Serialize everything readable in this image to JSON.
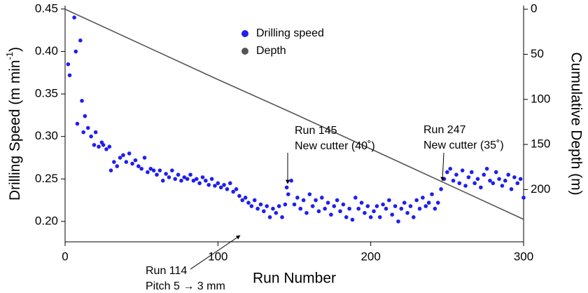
{
  "chart_data": {
    "type": "scatter",
    "xlabel": "Run Number",
    "ylabel": [
      "Drilling Speed (m min",
      "-1",
      ")"
    ],
    "y2label": "Cumulative Depth (m)",
    "xlim": [
      0,
      300
    ],
    "xticks": [
      0,
      100,
      200,
      300
    ],
    "ylim": [
      0.176,
      0.454
    ],
    "yticks": [
      {
        "value": 0.2,
        "label": "0.20"
      },
      0.25,
      {
        "value": 0.3,
        "label": "0.30"
      },
      0.35,
      {
        "value": 0.4,
        "label": "0.40"
      },
      0.45
    ],
    "y2lim": [
      -4,
      258
    ],
    "y2_inverted": true,
    "y2ticks": [
      0,
      50,
      100,
      150,
      200
    ],
    "legend": "top-center",
    "series": [
      {
        "name": "Drilling speed",
        "color": "#1f1fef",
        "kind": "points",
        "x": [
          2,
          3,
          6,
          7,
          8,
          10,
          11,
          12,
          13,
          15,
          17,
          19,
          20,
          22,
          24,
          25,
          27,
          29,
          30,
          32,
          34,
          36,
          38,
          40,
          42,
          44,
          46,
          48,
          50,
          52,
          54,
          56,
          58,
          60,
          62,
          64,
          66,
          68,
          70,
          72,
          74,
          76,
          78,
          80,
          82,
          84,
          86,
          88,
          90,
          92,
          94,
          96,
          98,
          100,
          102,
          104,
          106,
          108,
          110,
          112,
          114,
          116,
          118,
          120,
          122,
          124,
          126,
          128,
          130,
          132,
          134,
          136,
          138,
          140,
          142,
          144,
          145,
          146,
          148,
          150,
          152,
          154,
          156,
          158,
          160,
          162,
          164,
          166,
          168,
          170,
          172,
          174,
          176,
          178,
          180,
          182,
          184,
          186,
          188,
          190,
          192,
          194,
          196,
          198,
          200,
          202,
          204,
          206,
          208,
          210,
          212,
          214,
          216,
          218,
          220,
          222,
          224,
          226,
          228,
          230,
          232,
          234,
          236,
          238,
          240,
          242,
          244,
          246,
          248,
          250,
          252,
          254,
          256,
          258,
          260,
          262,
          264,
          266,
          268,
          270,
          272,
          274,
          276,
          278,
          280,
          282,
          284,
          286,
          288,
          290,
          292,
          294,
          296,
          298,
          300
        ],
        "values": [
          0.385,
          0.372,
          0.44,
          0.4,
          0.315,
          0.413,
          0.342,
          0.305,
          0.324,
          0.31,
          0.3,
          0.29,
          0.305,
          0.288,
          0.293,
          0.29,
          0.285,
          0.288,
          0.26,
          0.27,
          0.265,
          0.275,
          0.278,
          0.27,
          0.28,
          0.268,
          0.272,
          0.265,
          0.262,
          0.275,
          0.258,
          0.262,
          0.26,
          0.255,
          0.26,
          0.248,
          0.256,
          0.252,
          0.26,
          0.25,
          0.255,
          0.248,
          0.252,
          0.25,
          0.255,
          0.248,
          0.25,
          0.245,
          0.252,
          0.248,
          0.243,
          0.25,
          0.242,
          0.245,
          0.24,
          0.243,
          0.238,
          0.245,
          0.235,
          0.238,
          0.23,
          0.225,
          0.228,
          0.222,
          0.218,
          0.225,
          0.215,
          0.22,
          0.212,
          0.218,
          0.205,
          0.215,
          0.21,
          0.218,
          0.205,
          0.22,
          0.24,
          0.232,
          0.248,
          0.22,
          0.228,
          0.215,
          0.225,
          0.21,
          0.232,
          0.218,
          0.225,
          0.212,
          0.228,
          0.215,
          0.222,
          0.208,
          0.218,
          0.225,
          0.212,
          0.22,
          0.205,
          0.215,
          0.202,
          0.228,
          0.215,
          0.222,
          0.21,
          0.218,
          0.205,
          0.212,
          0.218,
          0.205,
          0.22,
          0.215,
          0.225,
          0.208,
          0.218,
          0.2,
          0.215,
          0.222,
          0.21,
          0.218,
          0.205,
          0.225,
          0.215,
          0.228,
          0.218,
          0.222,
          0.232,
          0.215,
          0.222,
          0.238,
          0.25,
          0.258,
          0.262,
          0.248,
          0.255,
          0.245,
          0.26,
          0.242,
          0.252,
          0.258,
          0.245,
          0.25,
          0.24,
          0.255,
          0.262,
          0.248,
          0.245,
          0.258,
          0.25,
          0.242,
          0.248,
          0.255,
          0.238,
          0.252,
          0.245,
          0.25,
          0.228
        ]
      },
      {
        "name": "Depth",
        "color": "#555555",
        "kind": "line",
        "axis": "y2",
        "x": [
          0,
          50,
          100,
          150,
          200,
          250,
          300
        ],
        "values": [
          0,
          39,
          78,
          116,
          155,
          194,
          233
        ]
      }
    ],
    "annotations": [
      {
        "lines": [
          "Run 114",
          "Pitch 5 → 3 mm"
        ]
      },
      {
        "lines": [
          "Run 145",
          "New cutter (40˚)"
        ]
      },
      {
        "lines": [
          "Run 247",
          "New cutter (35˚)"
        ]
      }
    ]
  }
}
